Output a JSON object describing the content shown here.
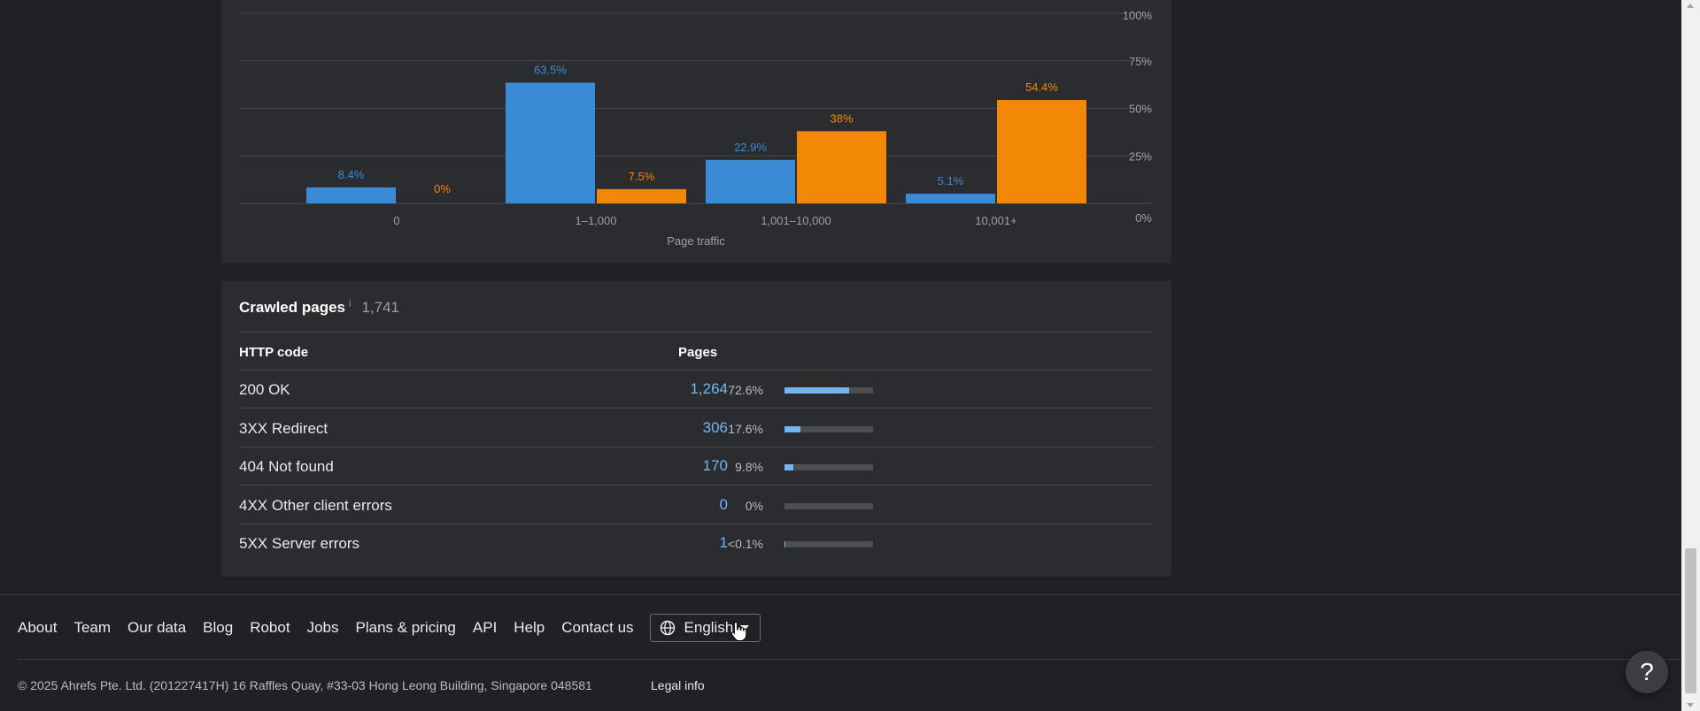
{
  "chart_data": {
    "type": "bar",
    "xlabel": "Page traffic",
    "categories": [
      "0",
      "1–1,000",
      "1,001–10,000",
      "10,001+"
    ],
    "series": [
      {
        "color": "#3a8ad6",
        "values": [
          8.4,
          63.5,
          22.9,
          5.1
        ],
        "labels": [
          "8.4%",
          "63.5%",
          "22.9%",
          "5.1%"
        ]
      },
      {
        "color": "#f38806",
        "values": [
          0,
          7.5,
          38,
          54.4
        ],
        "labels": [
          "0%",
          "7.5%",
          "38%",
          "54.4%"
        ]
      }
    ],
    "yticks": [
      "100%",
      "75%",
      "50%",
      "25%",
      "0%"
    ],
    "ylim": [
      0,
      100
    ],
    "grid": true
  },
  "crawled": {
    "title": "Crawled pages",
    "info": "i",
    "total": "1,741",
    "col_code": "HTTP code",
    "col_pages": "Pages",
    "rows": [
      {
        "code": "200 OK",
        "count": "1,264",
        "pct": "72.6%",
        "fraction": 0.726
      },
      {
        "code": "3XX Redirect",
        "count": "306",
        "pct": "17.6%",
        "fraction": 0.176
      },
      {
        "code": "404 Not found",
        "count": "170",
        "pct": "9.8%",
        "fraction": 0.098
      },
      {
        "code": "4XX Other client errors",
        "count": "0",
        "pct": "0%",
        "fraction": 0
      },
      {
        "code": "5XX Server errors",
        "count": "1",
        "pct": "<0.1%",
        "fraction": 0.001
      }
    ]
  },
  "footer": {
    "links": [
      "About",
      "Team",
      "Our data",
      "Blog",
      "Robot",
      "Jobs",
      "Plans & pricing",
      "API",
      "Help",
      "Contact us"
    ],
    "language": "English",
    "copyright": "© 2025 Ahrefs Pte. Ltd. (201227417H) 16 Raffles Quay, #33-03 Hong Leong Building, Singapore 048581",
    "legal": "Legal info"
  },
  "help": {
    "label": "?"
  },
  "icons": {
    "language": "globe-icon",
    "dropdown": "caret-down-icon",
    "cursor": "hand-pointer-icon"
  }
}
